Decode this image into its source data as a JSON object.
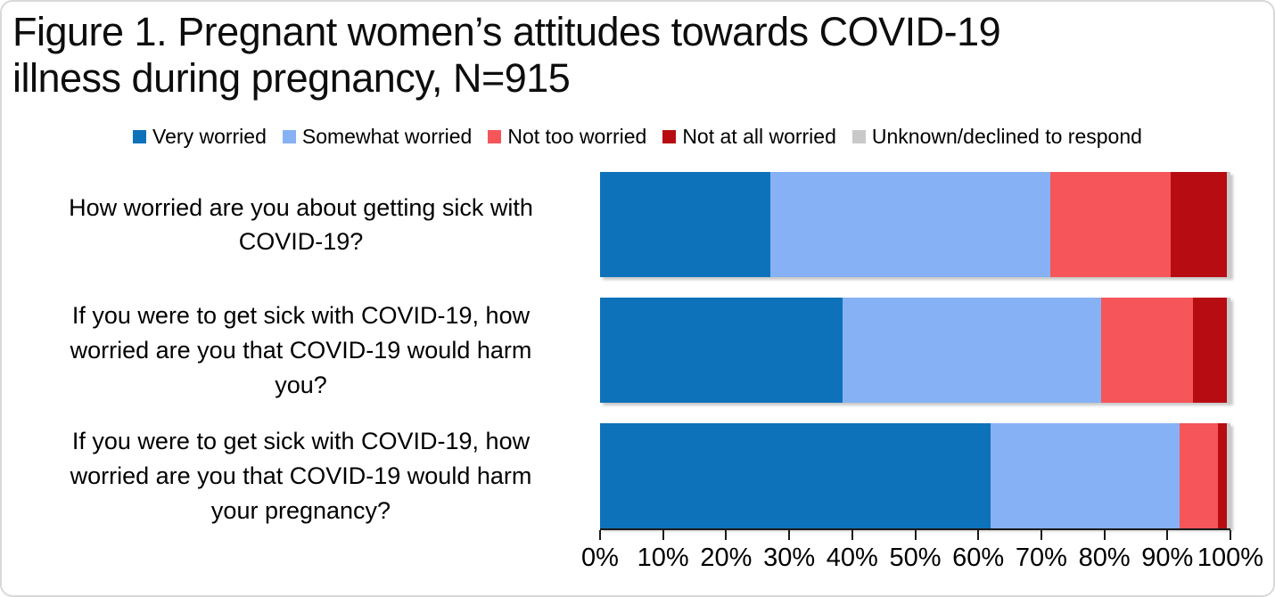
{
  "figure": {
    "title": "Figure 1. Pregnant women’s attitudes towards COVID-19\nillness during pregnancy, N=915"
  },
  "chart_data": {
    "type": "bar",
    "orientation": "horizontal",
    "stacked": true,
    "unit": "percent",
    "title": "Figure 1. Pregnant women’s attitudes towards COVID-19 illness during pregnancy, N=915",
    "n": 915,
    "legend_position": "top",
    "grid": false,
    "xlim": [
      0,
      100
    ],
    "x_ticks": [
      "0%",
      "10%",
      "20%",
      "30%",
      "40%",
      "50%",
      "60%",
      "70%",
      "80%",
      "90%",
      "100%"
    ],
    "categories": [
      "How worried are you about getting sick with\nCOVID-19?",
      "If you were to get sick with COVID-19, how\nworried are you that COVID-19 would harm\nyou?",
      "If you were to get sick with COVID-19, how\nworried are you that COVID-19 would harm\nyour pregnancy?"
    ],
    "series": [
      {
        "name": "Very worried",
        "color": "#0e72ba",
        "values": [
          27,
          38.5,
          62
        ]
      },
      {
        "name": "Somewhat worried",
        "color": "#86b2f5",
        "values": [
          44.5,
          41,
          30
        ]
      },
      {
        "name": "Not too worried",
        "color": "#f6555a",
        "values": [
          19,
          14.5,
          6
        ]
      },
      {
        "name": "Not at all worried",
        "color": "#b70d12",
        "values": [
          9,
          5.5,
          1.5
        ]
      },
      {
        "name": "Unknown/declined to respond",
        "color": "#c9c9c9",
        "values": [
          0.5,
          0.5,
          0.5
        ]
      }
    ]
  }
}
